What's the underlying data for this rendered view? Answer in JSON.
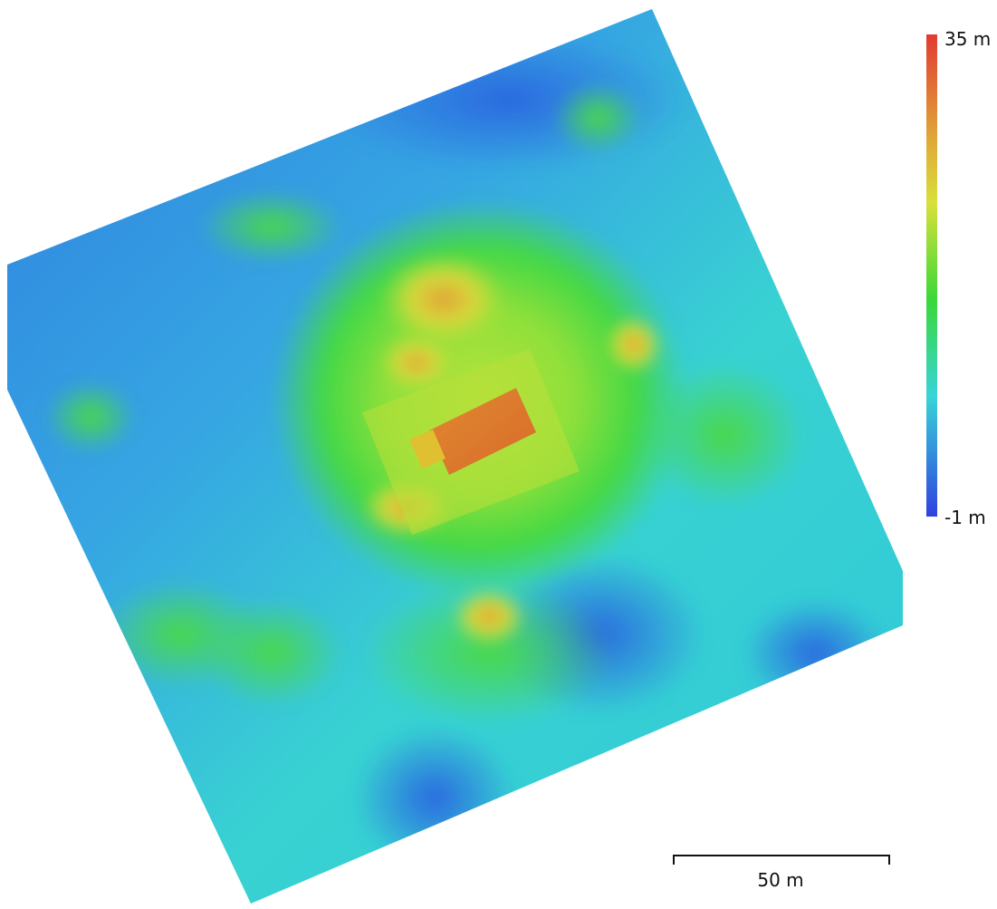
{
  "legend": {
    "max_label": "35 m",
    "min_label": "-1 m"
  },
  "scale_bar": {
    "label": "50 m"
  }
}
